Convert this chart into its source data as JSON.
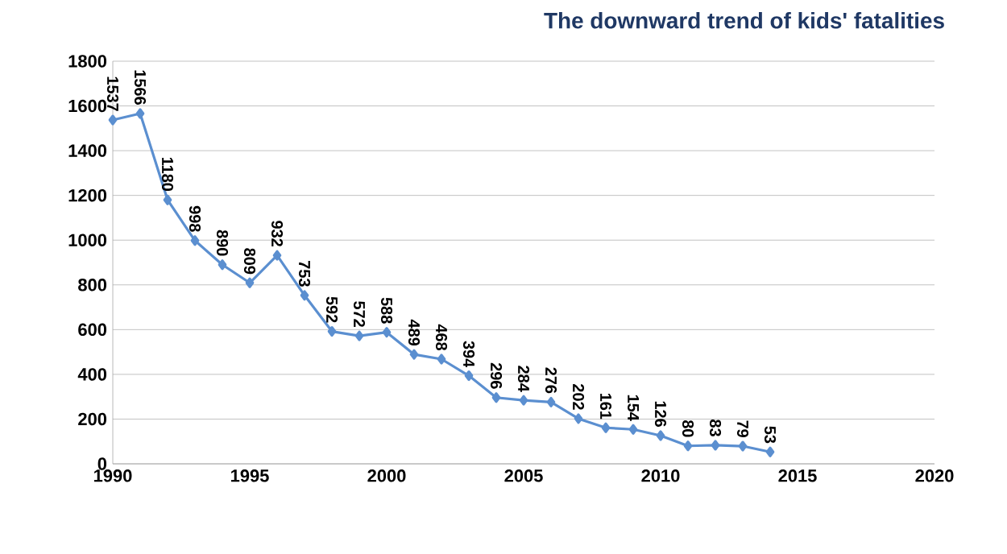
{
  "chart_data": {
    "type": "line",
    "title": "The downward trend of kids' fatalities",
    "x": [
      1990,
      1991,
      1992,
      1993,
      1994,
      1995,
      1996,
      1997,
      1998,
      1999,
      2000,
      2001,
      2002,
      2003,
      2004,
      2005,
      2006,
      2007,
      2008,
      2009,
      2010,
      2011,
      2012,
      2013,
      2014
    ],
    "values": [
      1537,
      1566,
      1180,
      998,
      890,
      809,
      932,
      753,
      592,
      572,
      588,
      489,
      468,
      394,
      296,
      284,
      276,
      202,
      161,
      154,
      126,
      80,
      83,
      79,
      53
    ],
    "color": "#5b8fd0",
    "marker": "diamond",
    "data_labels": true,
    "grid": "y",
    "xlim": [
      1990,
      2020
    ],
    "xticks": [
      1990,
      1995,
      2000,
      2005,
      2010,
      2015,
      2020
    ],
    "ylim": [
      0,
      1800
    ],
    "yticks": [
      0,
      200,
      400,
      600,
      800,
      1000,
      1200,
      1400,
      1600,
      1800
    ]
  }
}
